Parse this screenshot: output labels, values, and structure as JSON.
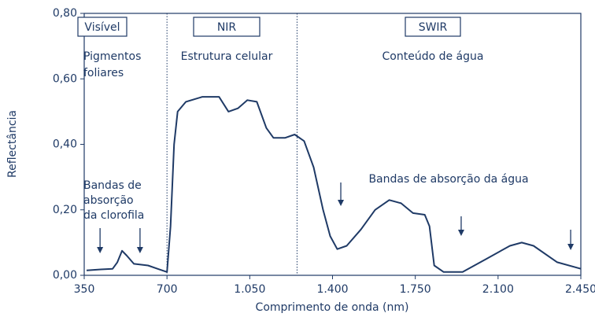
{
  "chart_data": {
    "type": "line",
    "ylabel": "Reflectância",
    "xlabel": "Comprimento de onda (nm)",
    "color": "#1f3a66",
    "xlim": [
      350,
      2450
    ],
    "ylim": [
      0,
      0.8
    ],
    "xticks": [
      350,
      700,
      {
        "value": 1050,
        "label": "1.050"
      },
      {
        "value": 1400,
        "label": "1.400"
      },
      {
        "value": 1750,
        "label": "1.750"
      },
      {
        "value": 2100,
        "label": "2.100"
      },
      {
        "value": 2450,
        "label": "2.450"
      }
    ],
    "yticks": [
      {
        "value": 0,
        "label": "0,00"
      },
      {
        "value": 0.2,
        "label": "0,20"
      },
      {
        "value": 0.4,
        "label": "0,40"
      },
      {
        "value": 0.6,
        "label": "0,60"
      },
      {
        "value": 0.8,
        "label": "0,80"
      }
    ],
    "x": [
      360,
      420,
      470,
      490,
      510,
      530,
      560,
      620,
      660,
      700,
      715,
      730,
      745,
      780,
      850,
      920,
      960,
      1000,
      1040,
      1080,
      1120,
      1150,
      1200,
      1240,
      1280,
      1320,
      1360,
      1390,
      1420,
      1460,
      1520,
      1580,
      1640,
      1690,
      1740,
      1790,
      1810,
      1830,
      1870,
      1950,
      2050,
      2150,
      2200,
      2250,
      2350,
      2450
    ],
    "values": [
      0.015,
      0.018,
      0.02,
      0.04,
      0.075,
      0.06,
      0.035,
      0.03,
      0.02,
      0.01,
      0.15,
      0.4,
      0.5,
      0.53,
      0.545,
      0.545,
      0.5,
      0.51,
      0.535,
      0.53,
      0.45,
      0.42,
      0.42,
      0.43,
      0.41,
      0.33,
      0.2,
      0.12,
      0.08,
      0.09,
      0.14,
      0.2,
      0.23,
      0.22,
      0.19,
      0.185,
      0.15,
      0.03,
      0.01,
      0.01,
      0.05,
      0.09,
      0.1,
      0.09,
      0.04,
      0.02
    ],
    "dividers": [
      700,
      1250
    ],
    "regions": [
      {
        "label": "Visível",
        "description": [
          "Pigmentos",
          "foliares"
        ]
      },
      {
        "label": "NIR",
        "description": [
          "Estrutura celular"
        ]
      },
      {
        "label": "SWIR",
        "description": [
          "Conteúdo de água"
        ]
      }
    ],
    "annotations": [
      {
        "text": [
          "Bandas de",
          "absorção",
          "da clorofila"
        ],
        "arrows": [
          417,
          586
        ]
      },
      {
        "text": [
          "Bandas de absorção da água"
        ],
        "arrows": [
          1435,
          1944,
          2407
        ]
      }
    ]
  }
}
